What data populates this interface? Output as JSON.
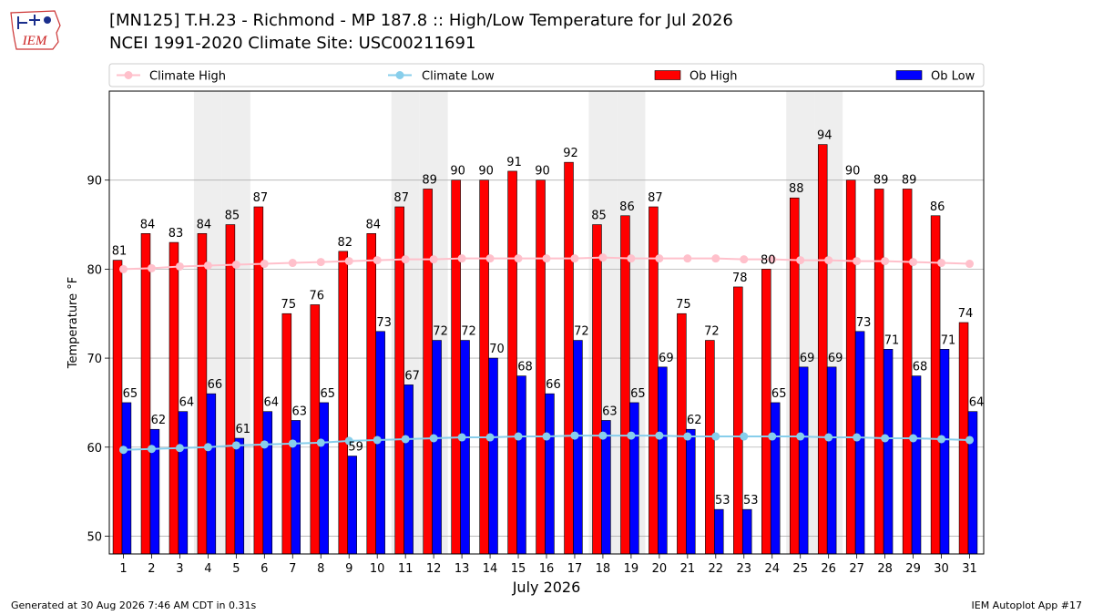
{
  "header": {
    "title_line1": "[MN125] T.H.23 - Richmond - MP 187.8  :: High/Low Temperature for Jul 2026",
    "title_line2": "NCEI 1991-2020 Climate Site: USC00211691",
    "logo_text": "IEM"
  },
  "footer": {
    "generated": "Generated at 30 Aug 2026 7:46 AM CDT in 0.31s",
    "app": "IEM Autoplot App #17"
  },
  "colors": {
    "climate_high": "#ffc0cb",
    "climate_low": "#87ceeb",
    "ob_high": "#ff0000",
    "ob_low": "#0000ff",
    "weekend_shade": "#eeeeee",
    "grid": "#b0b0b0"
  },
  "chart_data": {
    "type": "bar",
    "xlabel": "July 2026",
    "ylabel": "Temperature °F",
    "ylim": [
      48,
      100
    ],
    "yticks": [
      50,
      60,
      70,
      80,
      90
    ],
    "grid": "horizontal",
    "legend_placement": "top",
    "shaded_days": [
      4,
      5,
      11,
      12,
      18,
      19,
      25,
      26
    ],
    "categories": [
      "1",
      "2",
      "3",
      "4",
      "5",
      "6",
      "7",
      "8",
      "9",
      "10",
      "11",
      "12",
      "13",
      "14",
      "15",
      "16",
      "17",
      "18",
      "19",
      "20",
      "21",
      "22",
      "23",
      "24",
      "25",
      "26",
      "27",
      "28",
      "29",
      "30",
      "31"
    ],
    "legend": [
      "Climate High",
      "Climate Low",
      "Ob High",
      "Ob Low"
    ],
    "series": [
      {
        "name": "Ob High",
        "type": "bar",
        "values": [
          81,
          84,
          83,
          84,
          85,
          87,
          75,
          76,
          82,
          84,
          87,
          89,
          90,
          90,
          91,
          90,
          92,
          85,
          86,
          87,
          75,
          72,
          78,
          80,
          88,
          94,
          90,
          89,
          89,
          86,
          74
        ]
      },
      {
        "name": "Ob Low",
        "type": "bar",
        "values": [
          65,
          62,
          64,
          66,
          61,
          64,
          63,
          65,
          59,
          73,
          67,
          72,
          72,
          70,
          68,
          66,
          72,
          63,
          65,
          69,
          62,
          53,
          53,
          65,
          69,
          69,
          73,
          71,
          68,
          71,
          64
        ]
      },
      {
        "name": "Climate High",
        "type": "line",
        "values": [
          80.0,
          80.1,
          80.3,
          80.4,
          80.5,
          80.6,
          80.7,
          80.8,
          80.9,
          81.0,
          81.1,
          81.1,
          81.2,
          81.2,
          81.2,
          81.2,
          81.2,
          81.3,
          81.2,
          81.2,
          81.2,
          81.2,
          81.1,
          81.1,
          81.0,
          81.0,
          80.9,
          80.9,
          80.8,
          80.7,
          80.6
        ]
      },
      {
        "name": "Climate Low",
        "type": "line",
        "values": [
          59.7,
          59.8,
          59.9,
          60.0,
          60.2,
          60.3,
          60.4,
          60.5,
          60.7,
          60.8,
          60.9,
          61.0,
          61.1,
          61.1,
          61.2,
          61.2,
          61.3,
          61.3,
          61.3,
          61.3,
          61.2,
          61.2,
          61.2,
          61.2,
          61.2,
          61.1,
          61.1,
          61.0,
          61.0,
          60.9,
          60.8
        ]
      }
    ]
  }
}
